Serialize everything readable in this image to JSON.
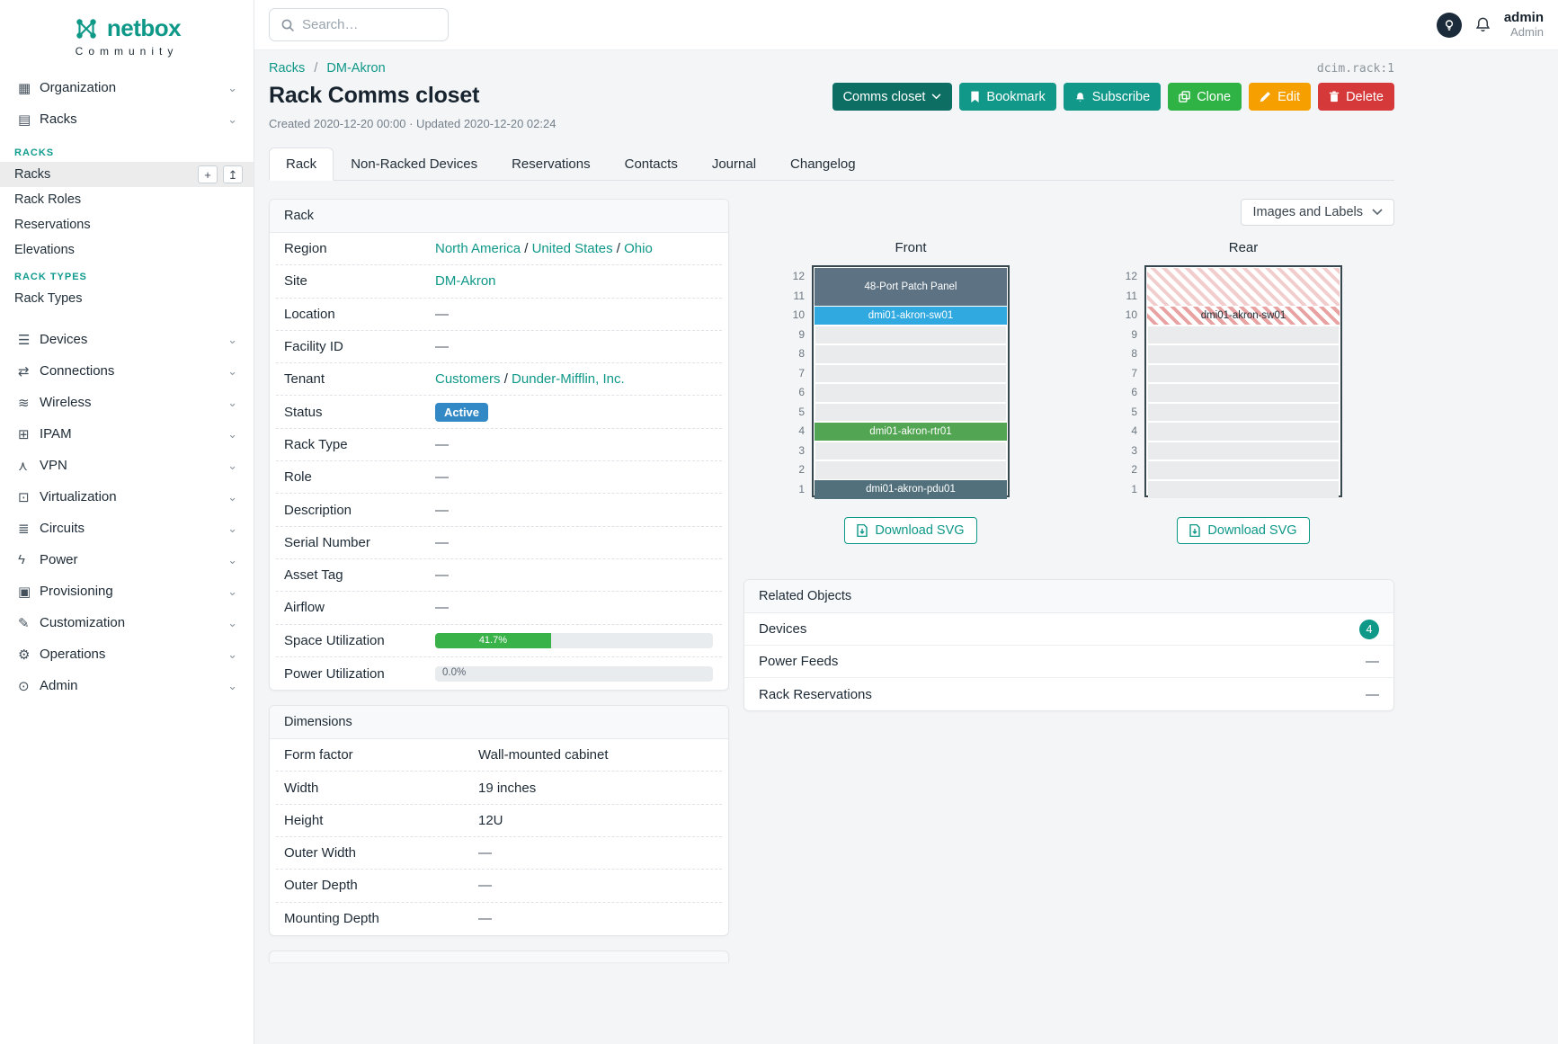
{
  "brand": {
    "name": "netbox",
    "subtitle": "Community"
  },
  "topbar": {
    "search_placeholder": "Search…",
    "user_name": "admin",
    "user_role": "Admin"
  },
  "sidebar": {
    "items": [
      {
        "label": "Organization",
        "icon": "▦"
      },
      {
        "label": "Racks",
        "icon": "▤",
        "expanded": true
      },
      {
        "label": "Devices",
        "icon": "☰"
      },
      {
        "label": "Connections",
        "icon": "⇄"
      },
      {
        "label": "Wireless",
        "icon": "≋"
      },
      {
        "label": "IPAM",
        "icon": "⊞"
      },
      {
        "label": "VPN",
        "icon": "⋏"
      },
      {
        "label": "Virtualization",
        "icon": "⊡"
      },
      {
        "label": "Circuits",
        "icon": "≣"
      },
      {
        "label": "Power",
        "icon": "ϟ"
      },
      {
        "label": "Provisioning",
        "icon": "▣"
      },
      {
        "label": "Customization",
        "icon": "✎"
      },
      {
        "label": "Operations",
        "icon": "⚙"
      },
      {
        "label": "Admin",
        "icon": "⊙"
      }
    ],
    "racks_submenu": [
      {
        "header": "RACKS",
        "items": [
          {
            "label": "Racks",
            "active": true,
            "has_actions": true,
            "actions": [
              "+",
              "↥"
            ]
          },
          {
            "label": "Rack Roles"
          },
          {
            "label": "Reservations"
          },
          {
            "label": "Elevations"
          }
        ]
      },
      {
        "header": "RACK TYPES",
        "items": [
          {
            "label": "Rack Types"
          }
        ]
      }
    ]
  },
  "breadcrumb": {
    "links": [
      "Racks",
      "DM-Akron"
    ],
    "object_id": "dcim.rack:1"
  },
  "page": {
    "title": "Rack Comms closet",
    "meta": "Created 2020-12-20 00:00 · Updated 2020-12-20 02:24"
  },
  "actions": {
    "quick_nav": "Comms closet",
    "bookmark": "Bookmark",
    "subscribe": "Subscribe",
    "clone": "Clone",
    "edit": "Edit",
    "delete": "Delete"
  },
  "tabs": [
    {
      "label": "Rack",
      "active": true
    },
    {
      "label": "Non-Racked Devices"
    },
    {
      "label": "Reservations"
    },
    {
      "label": "Contacts"
    },
    {
      "label": "Journal"
    },
    {
      "label": "Changelog"
    }
  ],
  "rack_card": {
    "title": "Rack",
    "dash": "—",
    "rows": [
      {
        "label": "Region",
        "type": "links",
        "parts": [
          "North America",
          "United States",
          "Ohio"
        ],
        "separator": " / "
      },
      {
        "label": "Site",
        "type": "links",
        "parts": [
          "DM-Akron"
        ]
      },
      {
        "label": "Location",
        "type": "dash"
      },
      {
        "label": "Facility ID",
        "type": "dash"
      },
      {
        "label": "Tenant",
        "type": "links",
        "parts": [
          "Customers",
          "Dunder-Mifflin, Inc."
        ],
        "separator": " / "
      },
      {
        "label": "Status",
        "type": "badge",
        "value": "Active",
        "color": "#3389c5"
      },
      {
        "label": "Rack Type",
        "type": "dash"
      },
      {
        "label": "Role",
        "type": "dash"
      },
      {
        "label": "Description",
        "type": "dash"
      },
      {
        "label": "Serial Number",
        "type": "dash"
      },
      {
        "label": "Asset Tag",
        "type": "dash"
      },
      {
        "label": "Airflow",
        "type": "dash"
      },
      {
        "label": "Space Utilization",
        "type": "progress",
        "percent": 41.7,
        "display": "41.7%"
      },
      {
        "label": "Power Utilization",
        "type": "progress",
        "percent": 0.0,
        "display": "0.0%"
      }
    ]
  },
  "dimensions_card": {
    "title": "Dimensions",
    "rows": [
      {
        "label": "Form factor",
        "type": "text",
        "value": "Wall-mounted cabinet"
      },
      {
        "label": "Width",
        "type": "text",
        "value": "19 inches"
      },
      {
        "label": "Height",
        "type": "text",
        "value": "12U"
      },
      {
        "label": "Outer Width",
        "type": "dash"
      },
      {
        "label": "Outer Depth",
        "type": "dash"
      },
      {
        "label": "Mounting Depth",
        "type": "dash"
      }
    ]
  },
  "elevations": {
    "toggle_label": "Images and Labels",
    "download_label": "Download SVG",
    "units": 12,
    "views": [
      {
        "name": "Front",
        "devices": [
          {
            "unit": 12,
            "height": 2,
            "label": "48-Port Patch Panel",
            "color": "#5d7384",
            "text": "#ffffff",
            "pattern": "solid"
          },
          {
            "unit": 10,
            "height": 1,
            "label": "dmi01-akron-sw01",
            "color": "#30a8e0",
            "text": "#ffffff",
            "pattern": "solid"
          },
          {
            "unit": 4,
            "height": 1,
            "label": "dmi01-akron-rtr01",
            "color": "#52a552",
            "text": "#ffffff",
            "pattern": "solid"
          },
          {
            "unit": 1,
            "height": 1,
            "label": "dmi01-akron-pdu01",
            "color": "#52707c",
            "text": "#ffffff",
            "pattern": "solid"
          }
        ]
      },
      {
        "name": "Rear",
        "devices": [
          {
            "unit": 12,
            "height": 2,
            "label": "",
            "pattern": "hatch-light"
          },
          {
            "unit": 10,
            "height": 1,
            "label": "dmi01-akron-sw01",
            "pattern": "hatch"
          }
        ]
      }
    ]
  },
  "related_objects": {
    "title": "Related Objects",
    "rows": [
      {
        "label": "Devices",
        "badge": "4"
      },
      {
        "label": "Power Feeds",
        "value": "—"
      },
      {
        "label": "Rack Reservations",
        "value": "—"
      }
    ]
  },
  "colors": {
    "primary": "#0e9888",
    "status_active": "#3389c5",
    "progress_green": "#38b249"
  }
}
